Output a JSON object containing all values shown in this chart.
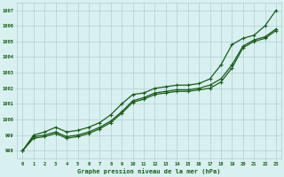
{
  "xlabel": "Graphe pression niveau de la mer (hPa)",
  "bg_color": "#d8f0f0",
  "line_color": "#1a5c1a",
  "grid_color": "#b0d0d0",
  "xmin": -0.5,
  "xmax": 23.5,
  "ymin": 997.5,
  "ymax": 1007.5,
  "yticks": [
    998,
    999,
    1000,
    1001,
    1002,
    1003,
    1004,
    1005,
    1006,
    1007
  ],
  "xticks": [
    0,
    1,
    2,
    3,
    4,
    5,
    6,
    7,
    8,
    9,
    10,
    11,
    12,
    13,
    14,
    15,
    16,
    17,
    18,
    19,
    20,
    21,
    22,
    23
  ],
  "line_max": [
    998.0,
    999.0,
    999.2,
    999.5,
    999.2,
    999.3,
    999.5,
    999.8,
    1000.3,
    1001.0,
    1001.6,
    1001.7,
    1002.0,
    1002.1,
    1002.2,
    1002.2,
    1002.3,
    1002.6,
    1003.5,
    1004.8,
    1005.2,
    1005.4,
    1006.0,
    1007.0
  ],
  "line_mid": [
    998.0,
    998.9,
    999.0,
    999.2,
    998.9,
    999.0,
    999.2,
    999.5,
    999.9,
    1000.5,
    1001.2,
    1001.4,
    1001.7,
    1001.8,
    1001.9,
    1001.9,
    1002.0,
    1002.2,
    1002.6,
    1003.5,
    1004.7,
    1005.1,
    1005.3,
    1005.8
  ],
  "line_min": [
    998.0,
    998.8,
    998.9,
    999.1,
    998.8,
    998.9,
    999.1,
    999.4,
    999.8,
    1000.4,
    1001.1,
    1001.3,
    1001.6,
    1001.7,
    1001.8,
    1001.8,
    1001.9,
    1002.0,
    1002.4,
    1003.3,
    1004.6,
    1005.0,
    1005.2,
    1005.7
  ]
}
